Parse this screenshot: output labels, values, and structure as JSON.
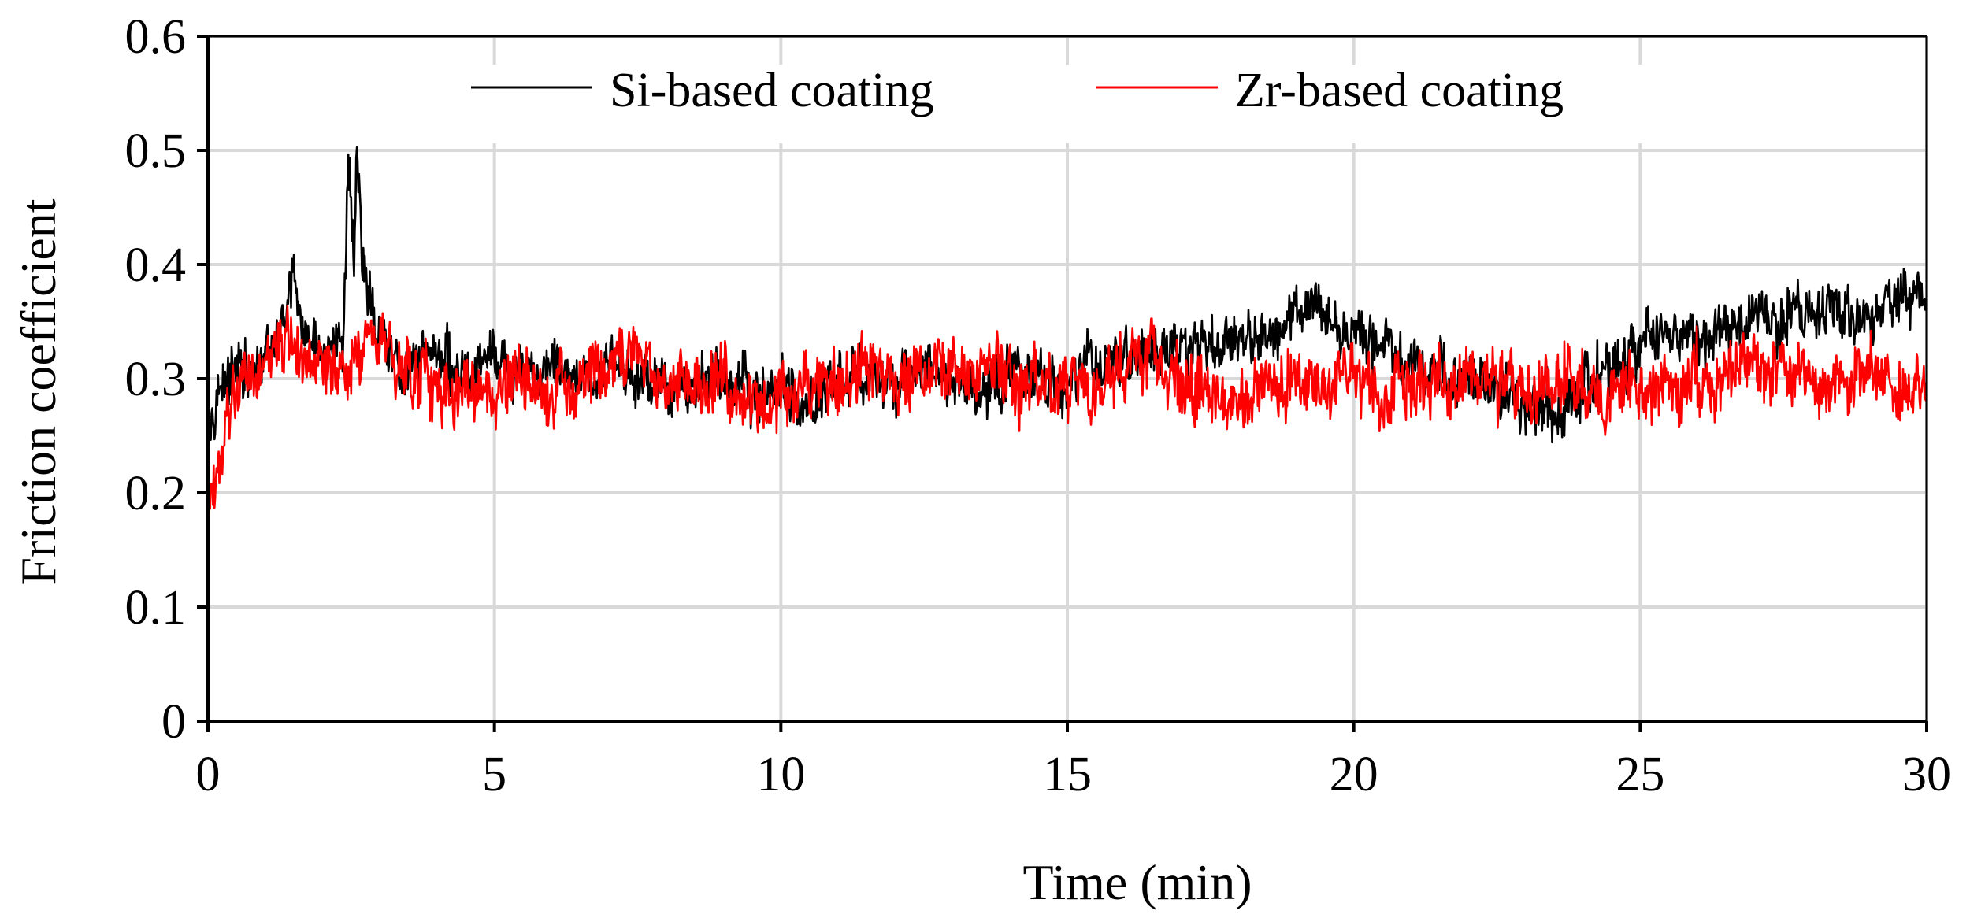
{
  "chart_data": {
    "type": "line",
    "title": "",
    "xlabel": "Time (min)",
    "ylabel": "Friction coefficient",
    "xlim": [
      0,
      30
    ],
    "ylim": [
      0,
      0.6
    ],
    "x_ticks": [
      0,
      5,
      10,
      15,
      20,
      25,
      30
    ],
    "x_tick_labels": [
      "0",
      "5",
      "10",
      "15",
      "20",
      "25",
      "30"
    ],
    "y_ticks": [
      0,
      0.1,
      0.2,
      0.3,
      0.4,
      0.5,
      0.6
    ],
    "y_tick_labels": [
      "0",
      "0.1",
      "0.2",
      "0.3",
      "0.4",
      "0.5",
      "0.6"
    ],
    "grid": true,
    "legend_position": "top",
    "colors": {
      "si": "#000000",
      "zr": "#ff0000",
      "grid": "#d9d9d9"
    },
    "series": [
      {
        "name": "Si-based coating",
        "color": "#000000",
        "x": [
          0,
          0.1,
          0.25,
          0.5,
          0.75,
          1.0,
          1.25,
          1.4,
          1.5,
          1.65,
          2.0,
          2.35,
          2.45,
          2.55,
          2.6,
          2.7,
          3.0,
          3.5,
          4.0,
          4.5,
          5.0,
          5.5,
          6.0,
          6.5,
          7.0,
          7.5,
          8.0,
          8.5,
          9.0,
          9.5,
          10.0,
          10.5,
          11.0,
          11.5,
          12.0,
          12.5,
          13.0,
          13.5,
          14.0,
          14.5,
          15.0,
          15.5,
          16.0,
          16.5,
          17.0,
          17.5,
          18.0,
          18.5,
          19.0,
          19.3,
          19.6,
          20.0,
          20.5,
          21.0,
          21.5,
          22.0,
          22.5,
          23.0,
          23.5,
          24.0,
          24.5,
          25.0,
          25.5,
          26.0,
          26.5,
          27.0,
          27.5,
          28.0,
          28.5,
          29.0,
          29.5,
          29.8,
          30.0
        ],
        "y": [
          0.26,
          0.28,
          0.29,
          0.31,
          0.3,
          0.31,
          0.34,
          0.36,
          0.4,
          0.33,
          0.32,
          0.33,
          0.48,
          0.42,
          0.49,
          0.4,
          0.33,
          0.31,
          0.32,
          0.3,
          0.32,
          0.3,
          0.31,
          0.29,
          0.31,
          0.3,
          0.3,
          0.29,
          0.3,
          0.29,
          0.29,
          0.28,
          0.3,
          0.3,
          0.29,
          0.31,
          0.3,
          0.29,
          0.31,
          0.3,
          0.3,
          0.31,
          0.32,
          0.32,
          0.33,
          0.33,
          0.33,
          0.34,
          0.36,
          0.37,
          0.35,
          0.34,
          0.33,
          0.31,
          0.3,
          0.3,
          0.29,
          0.28,
          0.27,
          0.29,
          0.3,
          0.33,
          0.34,
          0.33,
          0.34,
          0.35,
          0.35,
          0.36,
          0.36,
          0.35,
          0.37,
          0.38,
          0.35
        ]
      },
      {
        "name": "Zr-based coating",
        "color": "#ff0000",
        "x": [
          0,
          0.1,
          0.2,
          0.3,
          0.5,
          0.75,
          1.0,
          1.2,
          1.5,
          2.0,
          2.5,
          3.0,
          3.5,
          4.0,
          4.5,
          5.0,
          5.5,
          6.0,
          6.5,
          7.0,
          7.5,
          7.6,
          8.0,
          8.5,
          9.0,
          9.5,
          9.8,
          10.0,
          10.5,
          11.0,
          11.5,
          12.0,
          12.5,
          13.0,
          13.5,
          14.0,
          14.5,
          15.0,
          15.5,
          16.0,
          16.2,
          16.5,
          17.0,
          17.5,
          18.0,
          18.5,
          19.0,
          19.5,
          20.0,
          20.5,
          21.0,
          21.5,
          22.0,
          22.5,
          23.0,
          23.5,
          24.0,
          24.5,
          25.0,
          25.5,
          26.0,
          26.5,
          27.0,
          27.5,
          28.0,
          28.5,
          29.0,
          29.5,
          30.0
        ],
        "y": [
          0.2,
          0.19,
          0.22,
          0.26,
          0.29,
          0.31,
          0.32,
          0.33,
          0.32,
          0.31,
          0.32,
          0.33,
          0.31,
          0.29,
          0.29,
          0.29,
          0.3,
          0.29,
          0.3,
          0.31,
          0.33,
          0.3,
          0.3,
          0.29,
          0.29,
          0.29,
          0.27,
          0.29,
          0.3,
          0.3,
          0.31,
          0.3,
          0.31,
          0.3,
          0.3,
          0.3,
          0.29,
          0.29,
          0.3,
          0.31,
          0.33,
          0.31,
          0.29,
          0.29,
          0.28,
          0.29,
          0.3,
          0.29,
          0.3,
          0.29,
          0.3,
          0.3,
          0.3,
          0.3,
          0.29,
          0.29,
          0.3,
          0.29,
          0.29,
          0.3,
          0.29,
          0.3,
          0.3,
          0.31,
          0.3,
          0.29,
          0.3,
          0.29,
          0.3
        ]
      }
    ]
  }
}
